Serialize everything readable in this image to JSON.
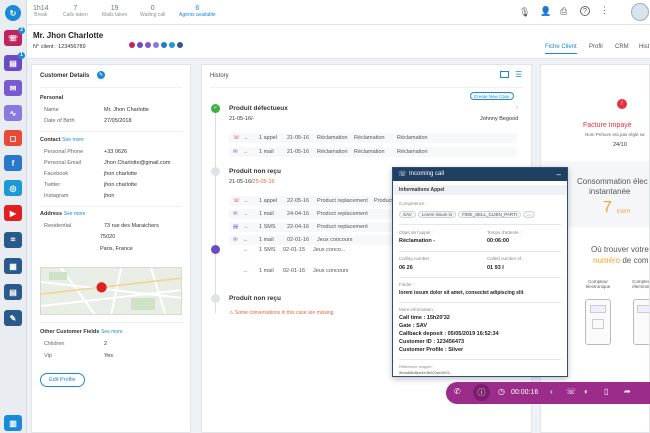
{
  "stats": [
    {
      "value": "1h14",
      "label": "Break"
    },
    {
      "value": "7",
      "label": "Calls taken"
    },
    {
      "value": "19",
      "label": "Mails taken"
    },
    {
      "value": "0",
      "label": "Waiting call"
    },
    {
      "value": "6",
      "label": "Agents available"
    }
  ],
  "customer": {
    "name": "Mr. Jhon Charlotte",
    "client_no": "N° client : 123456789"
  },
  "tabs": [
    "Fiche Client",
    "Profil",
    "CRM",
    "Hist"
  ],
  "details": {
    "title": "Customer Details",
    "personal_title": "Personal",
    "name_k": "Name",
    "name_v": "Mr. Jhon Charlotte",
    "dob_k": "Date of Birth",
    "dob_v": "27/05/2018",
    "contact_title": "Contact",
    "see_more": "See more",
    "phone_k": "Personal Phone",
    "phone_v": "+33 0626",
    "email_k": "Personal Email",
    "email_v": "Jhon Charlotte@gmail.com",
    "fb_k": "Facebook",
    "fb_v": "jhon charlotte",
    "tw_k": "Twitter",
    "tw_v": "jhon charlotte",
    "ig_k": "Instagram",
    "ig_v": "jhon",
    "address_title": "Address",
    "res_k": "Residential",
    "addr1": "73 rue des Maraichers",
    "addr2": "75020",
    "addr3": "Paris, France",
    "other_title": "Other Customer Fields",
    "children_k": "Children",
    "children_v": "2",
    "vip_k": "Vip",
    "vip_v": "Yes",
    "edit_btn": "Edit Profile"
  },
  "history": {
    "title": "History",
    "create_btn": "Create New Case",
    "case1": {
      "title": "Produit défectueux",
      "date": "21-05-16/-",
      "agent": "Johnny Begood",
      "r1": {
        "count": "1 appel",
        "date": "21-05-16",
        "a": "Réclamation",
        "b": "Réclamation",
        "c": "Réclamation"
      },
      "r2": {
        "count": "1 mail",
        "date": "21-05-16",
        "a": "Réclamation",
        "b": "Réclamation",
        "c": "Réclamation"
      }
    },
    "case2": {
      "title": "Produit non reçu",
      "date_a": "21-05-16/",
      "date_b": "25-05-16",
      "r1": {
        "count": "1 appel",
        "date": "22-05-16",
        "a": "Product replacement",
        "b": "Product"
      },
      "r2": {
        "count": "1 mail",
        "date": "24-04-16",
        "a": "Product replacement"
      },
      "r3": {
        "count": "1 SMS",
        "date": "22-04-16",
        "a": "Product replacement"
      },
      "r4": {
        "count": "1 mail",
        "date": "02-01-16",
        "a": "Jeux concours"
      }
    },
    "sms": {
      "count": "1 SMS",
      "date": "02-01-15",
      "a": "Jeux conco..."
    },
    "case3": {
      "title": "Produit non reçu",
      "warn": "Some conversations in this case are missing"
    }
  },
  "popup": {
    "title": "Incoming call",
    "section": "Informations Appel",
    "comp_label": "Competence :",
    "chips": [
      "SAV",
      "Lorem issum lo",
      "FIDE_SELL_CLIEN_PARTI",
      "..."
    ],
    "objet_label": "Objet de l'appel :",
    "objet_val": "Réclamation -",
    "attente_label": "Temps d'attente :",
    "attente_val": "00:06:00",
    "calling_label": "Calling number :",
    "calling_val": "06 26",
    "called_label": "Called number id :",
    "called_val": "01 93 I",
    "folder_label": "Folder :",
    "folder_val": "lorem issum dolor sit amet, consectet adipiscing elit",
    "more_label": "More information :",
    "more": [
      "Call time : 15h20'32",
      "Gate : SAV",
      "Callback deposit : 05/05/2019 16:52:34",
      "Customer ID : 123456473",
      "Customer Profile : Silver"
    ],
    "ref_label": "Référence d'appel :",
    "ref_val": "5bba68b8ee4e4b002ec2601"
  },
  "callbar": {
    "timer": "00:00:16"
  },
  "ad": {
    "facture": "Facture Impayé",
    "facture_sub": "Nom Présom e/a pas réglé sa",
    "facture_date": "24/10",
    "conso_title": "Consommation élec",
    "conso_sub": "instantanée",
    "conso_val": "7",
    "conso_unit": "KW/H",
    "ou_a": "Où trouver votre",
    "ou_b1": "numéro",
    "ou_b2": "de compte",
    "m1": "Compteur électronique",
    "m2": "Compteur électroniq"
  },
  "colors": {
    "accent": "#1a8ad8",
    "popup_head": "#1f3f63",
    "callbar": "#9b2c8a",
    "ad_orange": "#f5a623",
    "ad_red": "#e8303e"
  }
}
